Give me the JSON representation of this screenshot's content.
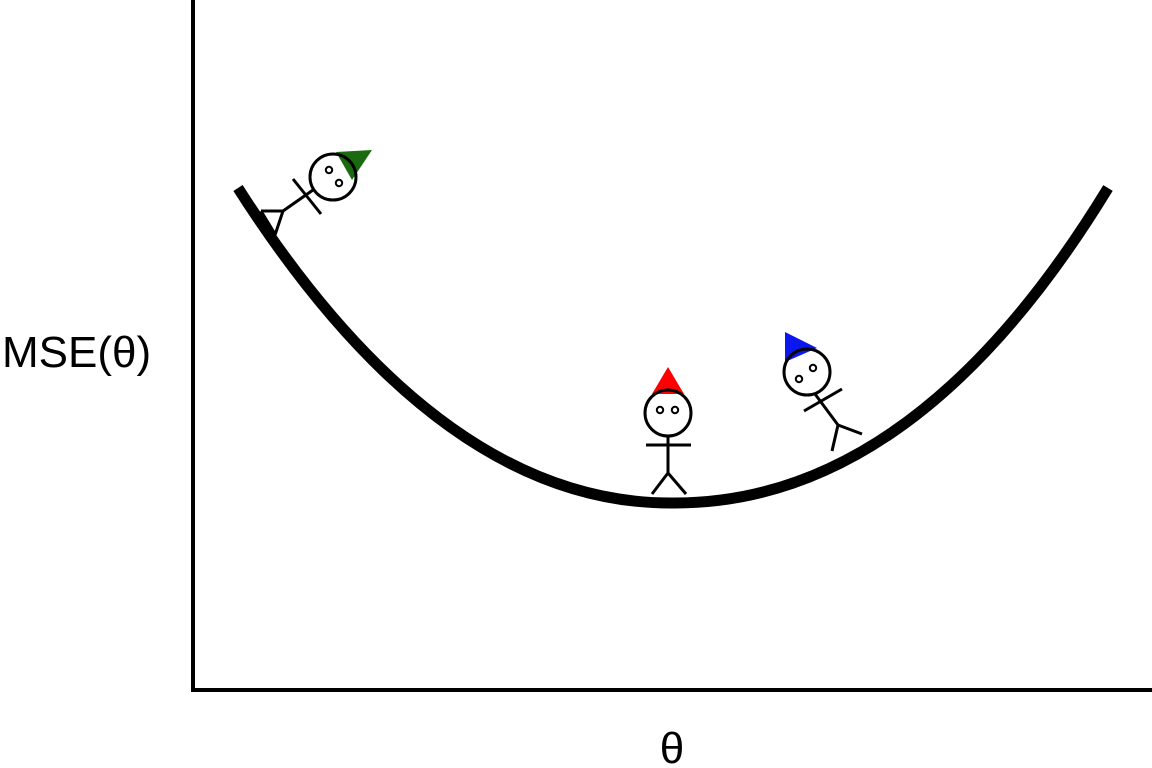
{
  "axes": {
    "y_label": "MSE(θ)",
    "x_label": "θ"
  },
  "figures": [
    {
      "name": "green-hat-stick-figure",
      "hat_color": "#1a6b0f"
    },
    {
      "name": "red-hat-stick-figure",
      "hat_color": "#ff0000"
    },
    {
      "name": "blue-hat-stick-figure",
      "hat_color": "#0a17ee"
    }
  ],
  "colors": {
    "line": "#000000",
    "background": "#ffffff"
  }
}
